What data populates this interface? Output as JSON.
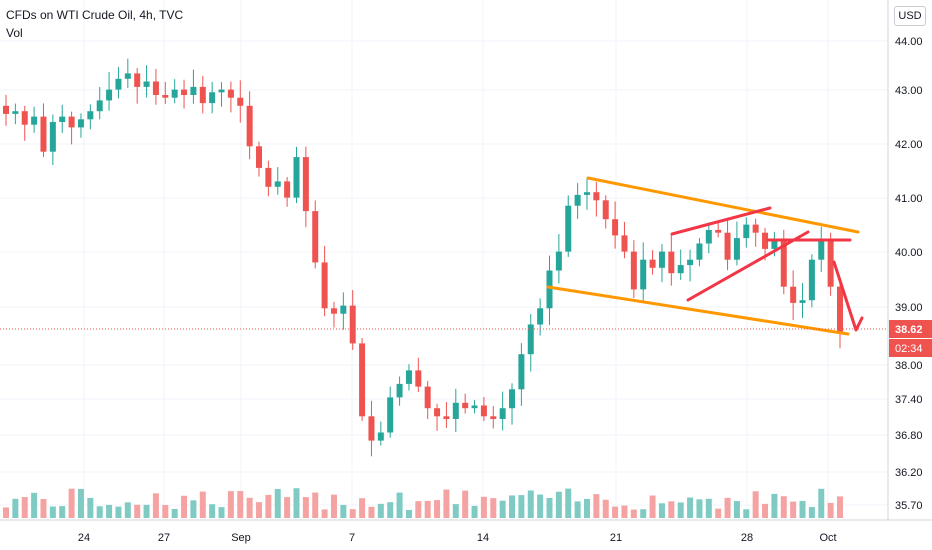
{
  "header": {
    "title": "CFDs on WTI Crude Oil, 4h, TVC",
    "volume_label": "Vol",
    "currency_button": "USD"
  },
  "price_axis": {
    "ticks": [
      "44.00",
      "43.00",
      "42.00",
      "41.00",
      "40.00",
      "39.00",
      "38.00",
      "37.40",
      "36.80",
      "36.20",
      "35.70"
    ],
    "last_price": "38.62",
    "countdown": "02:34"
  },
  "time_axis": {
    "ticks": [
      "24",
      "27",
      "Sep",
      "7",
      "14",
      "21",
      "28",
      "Oct"
    ]
  },
  "colors": {
    "up": "#26a69a",
    "down": "#ef5350",
    "up_volume": "#7fcbc4",
    "down_volume": "#f5a3a2",
    "channel": "#ff9800",
    "pattern": "#f23645",
    "price_line": "#ef5350",
    "grid": "#f0f3fa"
  },
  "chart_data": {
    "type": "candlestick",
    "symbol": "CFDs on WTI Crude Oil",
    "interval": "4h",
    "source": "TVC",
    "price_axis_ticks": [
      44.0,
      43.0,
      42.0,
      41.0,
      40.0,
      39.0,
      38.0,
      37.4,
      36.8,
      36.2,
      35.7
    ],
    "last_price": 38.62,
    "close_series": [
      42.65,
      42.7,
      42.45,
      42.6,
      41.95,
      42.5,
      42.6,
      42.4,
      42.55,
      42.7,
      42.9,
      43.1,
      43.3,
      43.4,
      43.15,
      43.25,
      43.0,
      42.95,
      43.1,
      43.0,
      43.15,
      42.85,
      43.05,
      43.1,
      42.95,
      42.8,
      42.05,
      41.65,
      41.3,
      41.4,
      41.1,
      41.85,
      40.85,
      39.9,
      39.05,
      38.95,
      39.1,
      38.4,
      37.05,
      36.6,
      36.75,
      37.4,
      37.65,
      37.9,
      37.6,
      37.2,
      37.05,
      37.0,
      37.3,
      37.2,
      37.25,
      37.05,
      37.0,
      37.2,
      37.55,
      38.2,
      38.75,
      39.05,
      39.75,
      40.1,
      40.95,
      41.15,
      41.2,
      41.05,
      40.7,
      40.4,
      40.1,
      39.4,
      39.95,
      39.8,
      40.1,
      39.7,
      39.85,
      39.95,
      40.25,
      40.5,
      40.45,
      39.95,
      40.35,
      40.6,
      40.45,
      40.15,
      40.3,
      39.45,
      39.15,
      39.2,
      39.95,
      40.3,
      39.45,
      38.62
    ],
    "channel_upper": [
      [
        41.4,
        "Sep 18"
      ],
      [
        40.35,
        "Oct 1"
      ]
    ],
    "channel_lower": [
      [
        39.35,
        "Sep 17"
      ],
      [
        38.55,
        "Oct 1"
      ]
    ],
    "volume_note": "Volume bars colored by candle direction"
  }
}
